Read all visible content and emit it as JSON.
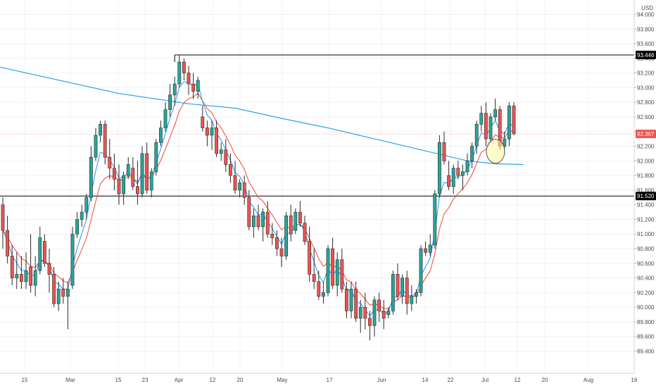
{
  "chart_data": {
    "type": "candlestick",
    "currency_label": "USD",
    "y_axis": {
      "ticks": [
        "94.000",
        "93.800",
        "93.600",
        "93.400",
        "93.200",
        "93.000",
        "92.800",
        "92.600",
        "92.400",
        "92.200",
        "92.000",
        "91.800",
        "91.600",
        "91.400",
        "91.200",
        "91.000",
        "90.800",
        "90.600",
        "90.400",
        "90.200",
        "90.000",
        "89.800",
        "89.600",
        "89.400"
      ],
      "range": [
        89.28,
        94.12
      ]
    },
    "x_axis": {
      "ticks": [
        "15",
        "Mar",
        "15",
        "23",
        "Apr",
        "12",
        "20",
        "May",
        "17",
        "Jun",
        "14",
        "22",
        "Jul",
        "12",
        "20",
        "Aug",
        "16"
      ]
    },
    "price_markers": {
      "top_line": "93.446",
      "bottom_line": "91.520",
      "current": "92.367"
    },
    "colors": {
      "up": "#26a69a",
      "down": "#ef5350",
      "ma_fast": "#2196f3",
      "ma_slow": "#f44336",
      "ma_long": "#29a3e6",
      "line": "#000000",
      "current": "#ef5350"
    },
    "candles": [
      [
        91.4,
        91.5,
        90.8,
        91.05
      ],
      [
        91.05,
        91.25,
        90.6,
        90.7
      ],
      [
        90.7,
        90.85,
        90.3,
        90.4
      ],
      [
        90.4,
        90.75,
        90.25,
        90.45
      ],
      [
        90.45,
        90.7,
        90.25,
        90.35
      ],
      [
        90.35,
        90.75,
        90.25,
        90.5
      ],
      [
        90.55,
        91.0,
        90.2,
        90.3
      ],
      [
        90.3,
        90.7,
        90.15,
        90.5
      ],
      [
        90.5,
        91.1,
        90.45,
        90.95
      ],
      [
        90.9,
        91.0,
        90.55,
        90.6
      ],
      [
        90.6,
        90.8,
        90.2,
        90.45
      ],
      [
        90.45,
        90.55,
        90.0,
        90.05
      ],
      [
        90.05,
        90.35,
        89.95,
        90.25
      ],
      [
        90.25,
        90.4,
        90.05,
        90.15
      ],
      [
        90.15,
        90.35,
        89.7,
        90.25
      ],
      [
        90.3,
        91.1,
        90.25,
        91.0
      ],
      [
        91.0,
        91.3,
        90.95,
        91.2
      ],
      [
        91.2,
        91.4,
        91.1,
        91.3
      ],
      [
        91.3,
        91.55,
        91.2,
        91.5
      ],
      [
        91.5,
        92.2,
        91.45,
        92.05
      ],
      [
        92.05,
        92.45,
        92.0,
        92.35
      ],
      [
        92.35,
        92.55,
        92.25,
        92.5
      ],
      [
        92.5,
        92.55,
        91.95,
        92.05
      ],
      [
        92.05,
        92.3,
        91.75,
        91.9
      ],
      [
        91.9,
        92.1,
        91.6,
        91.75
      ],
      [
        91.75,
        91.95,
        91.4,
        91.55
      ],
      [
        91.55,
        91.85,
        91.4,
        91.8
      ],
      [
        91.8,
        92.05,
        91.75,
        91.95
      ],
      [
        91.9,
        92.05,
        91.6,
        91.65
      ],
      [
        91.65,
        92.0,
        91.4,
        91.55
      ],
      [
        91.55,
        92.2,
        91.5,
        92.1
      ],
      [
        92.1,
        92.25,
        91.55,
        91.6
      ],
      [
        91.6,
        91.9,
        91.5,
        91.85
      ],
      [
        91.85,
        92.3,
        91.8,
        92.25
      ],
      [
        92.25,
        92.55,
        92.2,
        92.45
      ],
      [
        92.45,
        92.8,
        92.4,
        92.7
      ],
      [
        92.7,
        93.05,
        92.6,
        92.9
      ],
      [
        92.9,
        93.15,
        92.75,
        93.05
      ],
      [
        93.05,
        93.45,
        93.0,
        93.35
      ],
      [
        93.35,
        93.4,
        93.1,
        93.2
      ],
      [
        93.2,
        93.3,
        92.9,
        93.05
      ],
      [
        93.05,
        93.2,
        92.85,
        92.95
      ],
      [
        92.95,
        93.15,
        92.85,
        93.1
      ],
      [
        92.6,
        92.75,
        92.4,
        92.45
      ],
      [
        92.45,
        92.55,
        92.2,
        92.35
      ],
      [
        92.35,
        92.55,
        92.15,
        92.45
      ],
      [
        92.45,
        92.55,
        92.05,
        92.1
      ],
      [
        92.1,
        92.25,
        92.0,
        92.15
      ],
      [
        92.15,
        92.3,
        91.85,
        91.95
      ],
      [
        91.95,
        92.1,
        91.7,
        91.8
      ],
      [
        91.8,
        92.0,
        91.55,
        91.6
      ],
      [
        91.6,
        91.75,
        91.5,
        91.7
      ],
      [
        91.7,
        91.8,
        91.4,
        91.5
      ],
      [
        91.5,
        91.6,
        91.05,
        91.1
      ],
      [
        91.1,
        91.35,
        90.95,
        91.25
      ],
      [
        91.25,
        91.4,
        91.05,
        91.1
      ],
      [
        91.1,
        91.35,
        90.9,
        91.3
      ],
      [
        91.3,
        91.45,
        90.95,
        91.0
      ],
      [
        91.0,
        91.15,
        90.85,
        90.95
      ],
      [
        90.95,
        91.05,
        90.7,
        90.8
      ],
      [
        90.8,
        90.95,
        90.55,
        90.7
      ],
      [
        90.7,
        91.3,
        90.65,
        91.25
      ],
      [
        91.25,
        91.4,
        90.9,
        91.0
      ],
      [
        91.05,
        91.35,
        91.0,
        91.3
      ],
      [
        91.3,
        91.45,
        91.1,
        91.15
      ],
      [
        91.15,
        91.25,
        90.85,
        90.9
      ],
      [
        90.9,
        91.1,
        90.35,
        90.45
      ],
      [
        90.45,
        90.8,
        90.25,
        90.35
      ],
      [
        90.35,
        90.5,
        90.1,
        90.15
      ],
      [
        90.15,
        90.35,
        90.05,
        90.2
      ],
      [
        90.2,
        90.85,
        90.15,
        90.8
      ],
      [
        90.8,
        90.95,
        90.25,
        90.3
      ],
      [
        90.3,
        90.75,
        90.15,
        90.65
      ],
      [
        90.65,
        90.8,
        90.2,
        90.25
      ],
      [
        90.25,
        90.35,
        89.85,
        89.95
      ],
      [
        89.95,
        90.35,
        89.85,
        90.25
      ],
      [
        90.25,
        90.35,
        89.8,
        89.85
      ],
      [
        89.85,
        90.1,
        89.65,
        90.0
      ],
      [
        90.0,
        90.2,
        89.7,
        89.85
      ],
      [
        89.85,
        89.95,
        89.55,
        89.75
      ],
      [
        89.75,
        90.15,
        89.6,
        90.1
      ],
      [
        90.1,
        90.2,
        89.8,
        89.95
      ],
      [
        89.95,
        90.1,
        89.7,
        89.85
      ],
      [
        89.9,
        90.0,
        89.85,
        89.95
      ],
      [
        89.95,
        90.5,
        89.9,
        90.45
      ],
      [
        90.45,
        90.6,
        90.1,
        90.15
      ],
      [
        90.15,
        90.45,
        90.05,
        90.4
      ],
      [
        90.4,
        90.5,
        89.9,
        90.05
      ],
      [
        90.05,
        90.3,
        89.95,
        90.15
      ],
      [
        90.15,
        90.25,
        90.05,
        90.2
      ],
      [
        90.2,
        90.85,
        90.15,
        90.8
      ],
      [
        90.8,
        90.9,
        90.7,
        90.75
      ],
      [
        90.75,
        91.0,
        90.7,
        90.85
      ],
      [
        90.85,
        91.6,
        90.8,
        91.55
      ],
      [
        91.55,
        92.35,
        91.5,
        92.25
      ],
      [
        92.25,
        92.4,
        91.95,
        92.0
      ],
      [
        91.8,
        92.0,
        91.6,
        91.65
      ],
      [
        91.65,
        91.95,
        91.55,
        91.9
      ],
      [
        91.9,
        92.0,
        91.75,
        91.8
      ],
      [
        91.8,
        91.95,
        91.6,
        91.85
      ],
      [
        91.85,
        92.1,
        91.8,
        92.0
      ],
      [
        92.0,
        92.25,
        91.9,
        92.2
      ],
      [
        92.2,
        92.55,
        92.1,
        92.5
      ],
      [
        92.5,
        92.75,
        92.4,
        92.65
      ],
      [
        92.65,
        92.8,
        92.2,
        92.3
      ],
      [
        92.3,
        92.65,
        92.25,
        92.6
      ],
      [
        92.6,
        92.85,
        92.55,
        92.7
      ],
      [
        92.7,
        92.75,
        92.15,
        92.2
      ],
      [
        92.2,
        92.4,
        92.1,
        92.3
      ],
      [
        92.3,
        92.8,
        92.2,
        92.75
      ],
      [
        92.75,
        92.8,
        92.35,
        92.37
      ]
    ],
    "ma_long_anchors": [
      [
        0,
        93.28
      ],
      [
        25,
        92.92
      ],
      [
        40,
        92.78
      ],
      [
        50,
        92.72
      ],
      [
        60,
        92.58
      ],
      [
        70,
        92.45
      ],
      [
        80,
        92.3
      ],
      [
        90,
        92.15
      ],
      [
        100,
        92.0
      ],
      [
        106,
        91.96
      ],
      [
        112,
        91.95
      ]
    ]
  }
}
